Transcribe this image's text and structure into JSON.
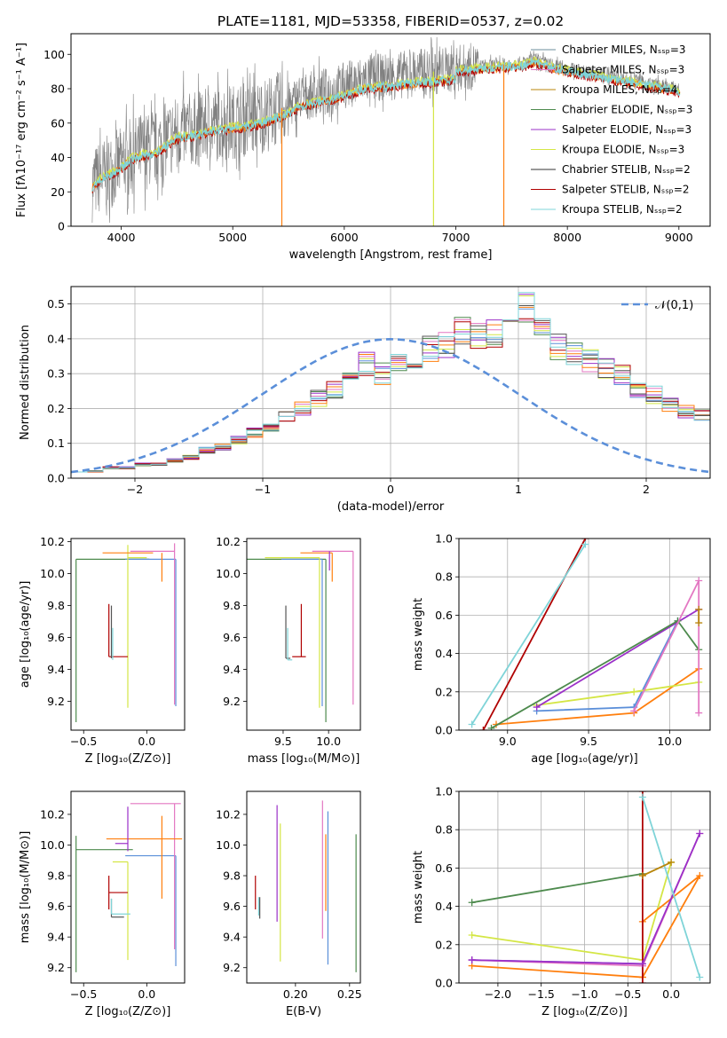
{
  "chart_data": [
    {
      "id": "spectrum",
      "type": "line",
      "title": "PLATE=1181, MJD=53358, FIBERID=0537, z=0.02",
      "xlabel": "wavelength [Angstrom, rest frame]",
      "ylabel": "Flux [fλ10⁻¹⁷ erg cm⁻² s⁻¹ A⁻¹]",
      "xlim": [
        3550,
        9280
      ],
      "ylim": [
        0,
        112
      ],
      "xticks": [
        4000,
        5000,
        6000,
        7000,
        8000,
        9000
      ],
      "yticks": [
        0,
        20,
        40,
        60,
        80,
        100
      ],
      "grid": false,
      "legend_position": "top-right",
      "legend": [
        {
          "label": "Chabrier MILES, Nₛₛₚ=3",
          "color": "#6b8e9b"
        },
        {
          "label": "Salpeter MILES, Nₛₛₚ=3",
          "color": "#e377c2"
        },
        {
          "label": "Kroupa MILES, Nₛₛₚ=4",
          "color": "#b8860b"
        },
        {
          "label": "Chabrier ELODIE, Nₛₛₚ=3",
          "color": "#4d8a4d"
        },
        {
          "label": "Salpeter ELODIE, Nₛₛₚ=3",
          "color": "#9b30c8"
        },
        {
          "label": "Kroupa ELODIE, Nₛₛₚ=3",
          "color": "#d4e645"
        },
        {
          "label": "Chabrier STELIB, Nₛₛₚ=2",
          "color": "#333333"
        },
        {
          "label": "Salpeter STELIB, Nₛₛₚ=2",
          "color": "#b00000"
        },
        {
          "label": "Kroupa STELIB, Nₛₛₚ=2",
          "color": "#7fd4d8"
        }
      ],
      "data_color": "#808080",
      "model_trend": {
        "x": [
          3740,
          3800,
          3900,
          4000,
          4100,
          4200,
          4300,
          4400,
          4500,
          4600,
          4700,
          4800,
          4900,
          5000,
          5100,
          5200,
          5300,
          5400,
          5500,
          5600,
          5700,
          5800,
          5900,
          6000,
          6200,
          6400,
          6600,
          6800,
          7000,
          7200,
          7400,
          7600,
          7700,
          7800,
          7900
        ],
        "y": [
          24,
          28,
          32,
          36,
          42,
          44,
          45,
          50,
          55,
          56,
          57,
          59,
          60,
          61,
          62,
          63,
          65,
          68,
          70,
          75,
          76,
          78,
          79,
          82,
          86,
          87,
          89,
          90,
          92,
          93,
          94,
          95,
          97,
          95,
          93
        ]
      }
    },
    {
      "id": "residuals",
      "type": "histogram",
      "xlabel": "(data-model)/error",
      "ylabel": "Normed distribution",
      "xlim": [
        -2.5,
        2.5
      ],
      "ylim": [
        0,
        0.55
      ],
      "xticks": [
        -2,
        -1,
        0,
        1,
        2
      ],
      "yticks": [
        0.0,
        0.1,
        0.2,
        0.3,
        0.4,
        0.5
      ],
      "grid": true,
      "legend_position": "top-right",
      "legend": [
        {
          "label": "𝒩(0,1)",
          "color": "#5b8fd9",
          "style": "dashed"
        }
      ],
      "reference_curve": "normal(0,1)",
      "bin_width": 0.125,
      "bin_start": -2.5,
      "base_hist": [
        0.02,
        0.02,
        0.03,
        0.03,
        0.04,
        0.04,
        0.05,
        0.06,
        0.08,
        0.09,
        0.11,
        0.13,
        0.15,
        0.18,
        0.2,
        0.23,
        0.25,
        0.28,
        0.33,
        0.3,
        0.33,
        0.35,
        0.37,
        0.38,
        0.42,
        0.4,
        0.42,
        0.44,
        0.49,
        0.45,
        0.38,
        0.36,
        0.34,
        0.31,
        0.3,
        0.26,
        0.24,
        0.21,
        0.19,
        0.18,
        0.16,
        0.14,
        0.12,
        0.1,
        0.08,
        0.07,
        0.06,
        0.04,
        0.03,
        0.03,
        0.02
      ]
    },
    {
      "id": "age_vs_Z",
      "type": "errorbar",
      "xlabel": "Z [log₁₀(Z/Z⊙)]",
      "ylabel": "age  [log₁₀(age/yr)]",
      "xlim": [
        -0.6,
        0.3
      ],
      "ylim": [
        9.02,
        10.22
      ],
      "xticks": [
        -0.5,
        0.0
      ],
      "yticks": [
        9.2,
        9.4,
        9.6,
        9.8,
        10.0,
        10.2
      ],
      "grid": false,
      "points": [
        {
          "x": -0.56,
          "y": 10.09,
          "xerr": [
            0.0,
            0.58
          ],
          "yerr": [
            1.02,
            0.0
          ],
          "color": "#4d8a4d"
        },
        {
          "x": 0.23,
          "y": 10.09,
          "xerr": [
            0.4,
            0.0
          ],
          "yerr": [
            0.92,
            0.0
          ],
          "color": "#5b8fd9"
        },
        {
          "x": -0.15,
          "y": 10.1,
          "xerr": [
            0.0,
            0.15
          ],
          "yerr": [
            0.94,
            0.08
          ],
          "color": "#d4e645"
        },
        {
          "x": 0.22,
          "y": 10.14,
          "xerr": [
            0.35,
            0.0
          ],
          "yerr": [
            0.96,
            0.05
          ],
          "color": "#e377c2"
        },
        {
          "x": -0.1,
          "y": 10.13,
          "xerr": [
            0.25,
            0.15
          ],
          "yerr": [
            0.0,
            0.0
          ],
          "color": "#ff7f0e"
        },
        {
          "x": 0.12,
          "y": 10.13,
          "xerr": [
            0.0,
            0.0
          ],
          "yerr": [
            0.18,
            0.0
          ],
          "color": "#ff7f0e"
        },
        {
          "x": -0.3,
          "y": 9.48,
          "xerr": [
            0.0,
            0.15
          ],
          "yerr": [
            0.0,
            0.33
          ],
          "color": "#b00000"
        },
        {
          "x": -0.28,
          "y": 9.47,
          "xerr": [
            0.0,
            0.0
          ],
          "yerr": [
            0.0,
            0.33
          ],
          "color": "#555555"
        },
        {
          "x": -0.27,
          "y": 9.46,
          "xerr": [
            0.0,
            0.0
          ],
          "yerr": [
            0.0,
            0.2
          ],
          "color": "#7fd4d8"
        }
      ]
    },
    {
      "id": "age_vs_mass",
      "type": "errorbar",
      "xlabel": "mass [log₁₀(M/M⊙)]",
      "ylabel": "",
      "xlim": [
        9.1,
        10.35
      ],
      "ylim": [
        9.02,
        10.22
      ],
      "xticks": [
        9.5,
        10.0
      ],
      "yticks": [
        9.2,
        9.4,
        9.6,
        9.8,
        10.0,
        10.2
      ],
      "grid": false,
      "points": [
        {
          "x": 9.97,
          "y": 10.09,
          "xerr": [
            0.95,
            0.0
          ],
          "yerr": [
            1.02,
            0.0
          ],
          "color": "#4d8a4d"
        },
        {
          "x": 9.93,
          "y": 10.09,
          "xerr": [
            0.45,
            0.0
          ],
          "yerr": [
            0.92,
            0.0
          ],
          "color": "#5b8fd9"
        },
        {
          "x": 9.9,
          "y": 10.1,
          "xerr": [
            0.6,
            0.0
          ],
          "yerr": [
            0.94,
            0.0
          ],
          "color": "#d4e645"
        },
        {
          "x": 10.27,
          "y": 10.14,
          "xerr": [
            0.45,
            0.0
          ],
          "yerr": [
            0.96,
            0.0
          ],
          "color": "#e377c2"
        },
        {
          "x": 10.04,
          "y": 10.13,
          "xerr": [
            0.35,
            0.0
          ],
          "yerr": [
            0.18,
            0.0
          ],
          "color": "#ff7f0e"
        },
        {
          "x": 10.01,
          "y": 10.14,
          "xerr": [
            0.0,
            0.0
          ],
          "yerr": [
            0.12,
            0.0
          ],
          "color": "#9b30c8"
        },
        {
          "x": 9.7,
          "y": 9.48,
          "xerr": [
            0.1,
            0.05
          ],
          "yerr": [
            0.0,
            0.33
          ],
          "color": "#b00000"
        },
        {
          "x": 9.53,
          "y": 9.47,
          "xerr": [
            0.0,
            0.05
          ],
          "yerr": [
            0.0,
            0.33
          ],
          "color": "#555555"
        },
        {
          "x": 9.55,
          "y": 9.46,
          "xerr": [
            0.0,
            0.05
          ],
          "yerr": [
            0.0,
            0.2
          ],
          "color": "#7fd4d8"
        }
      ]
    },
    {
      "id": "weight_vs_age",
      "type": "line",
      "xlabel": "age  [log₁₀(age/yr)]",
      "ylabel": "mass weight",
      "xlim": [
        8.7,
        10.25
      ],
      "ylim": [
        0,
        1
      ],
      "xticks": [
        9.0,
        9.5,
        10.0
      ],
      "yticks": [
        0.0,
        0.2,
        0.4,
        0.6,
        0.8,
        1.0
      ],
      "grid": true,
      "series": [
        {
          "color": "#ff7f0e",
          "x": [
            8.93,
            9.78,
            10.18
          ],
          "y": [
            0.03,
            0.09,
            0.32
          ]
        },
        {
          "color": "#5b8fd9",
          "x": [
            9.18,
            9.78,
            10.05
          ],
          "y": [
            0.1,
            0.12,
            0.57
          ]
        },
        {
          "color": "#d4e645",
          "x": [
            9.18,
            9.78,
            10.18
          ],
          "y": [
            0.13,
            0.2,
            0.25
          ]
        },
        {
          "color": "#9b30c8",
          "x": [
            9.18,
            10.18
          ],
          "y": [
            0.12,
            0.63
          ]
        },
        {
          "color": "#4d8a4d",
          "x": [
            8.9,
            10.05,
            10.18
          ],
          "y": [
            0.01,
            0.57,
            0.42
          ]
        },
        {
          "color": "#b00000",
          "x": [
            8.85,
            9.48
          ],
          "y": [
            0.0,
            1.0
          ]
        },
        {
          "color": "#e377c2",
          "x": [
            9.78,
            10.18,
            10.18
          ],
          "y": [
            0.1,
            0.78,
            0.09
          ]
        },
        {
          "color": "#7fd4d8",
          "x": [
            8.78,
            9.48
          ],
          "y": [
            0.03,
            0.97
          ]
        },
        {
          "color": "#b8860b",
          "x": [
            10.18,
            10.18
          ],
          "y": [
            0.63,
            0.56
          ]
        }
      ]
    },
    {
      "id": "mass_vs_Z",
      "type": "errorbar",
      "xlabel": "Z [log₁₀(Z/Z⊙)]",
      "ylabel": "mass [log₁₀(M/M⊙)]",
      "xlim": [
        -0.6,
        0.3
      ],
      "ylim": [
        9.1,
        10.35
      ],
      "xticks": [
        -0.5,
        0.0
      ],
      "yticks": [
        9.2,
        9.4,
        9.6,
        9.8,
        10.0,
        10.2
      ],
      "grid": false,
      "points": [
        {
          "x": -0.56,
          "y": 9.97,
          "xerr": [
            0.0,
            0.45
          ],
          "yerr": [
            0.8,
            0.09
          ],
          "color": "#4d8a4d"
        },
        {
          "x": 0.23,
          "y": 9.93,
          "xerr": [
            0.4,
            0.0
          ],
          "yerr": [
            0.72,
            0.0
          ],
          "color": "#5b8fd9"
        },
        {
          "x": -0.15,
          "y": 9.89,
          "xerr": [
            0.12,
            0.0
          ],
          "yerr": [
            0.64,
            0.0
          ],
          "color": "#d4e645"
        },
        {
          "x": 0.22,
          "y": 10.27,
          "xerr": [
            0.35,
            0.05
          ],
          "yerr": [
            0.95,
            0.0
          ],
          "color": "#e377c2"
        },
        {
          "x": -0.32,
          "y": 10.04,
          "xerr": [
            0.0,
            0.6
          ],
          "yerr": [
            0.0,
            0.0
          ],
          "color": "#ff7f0e"
        },
        {
          "x": 0.12,
          "y": 10.04,
          "xerr": [
            0.0,
            0.0
          ],
          "yerr": [
            0.39,
            0.15
          ],
          "color": "#ff7f0e"
        },
        {
          "x": -0.15,
          "y": 10.01,
          "xerr": [
            0.1,
            0.0
          ],
          "yerr": [
            0.05,
            0.24
          ],
          "color": "#9b30c8"
        },
        {
          "x": -0.3,
          "y": 9.69,
          "xerr": [
            0.0,
            0.15
          ],
          "yerr": [
            0.11,
            0.11
          ],
          "color": "#b00000"
        },
        {
          "x": -0.28,
          "y": 9.53,
          "xerr": [
            0.0,
            0.1
          ],
          "yerr": [
            0.0,
            0.12
          ],
          "color": "#555555"
        },
        {
          "x": -0.28,
          "y": 9.55,
          "xerr": [
            0.0,
            0.15
          ],
          "yerr": [
            0.0,
            0.1
          ],
          "color": "#7fd4d8"
        }
      ]
    },
    {
      "id": "mass_vs_ebv",
      "type": "errorbar",
      "xlabel": "E(B-V)",
      "ylabel": "",
      "xlim": [
        0.155,
        0.26
      ],
      "ylim": [
        9.1,
        10.35
      ],
      "xticks": [
        0.2,
        0.25
      ],
      "yticks": [
        9.2,
        9.4,
        9.6,
        9.8,
        10.0,
        10.2
      ],
      "grid": false,
      "points": [
        {
          "x": 0.256,
          "y": 9.62,
          "yerr": [
            0.45,
            0.45
          ],
          "color": "#4d8a4d"
        },
        {
          "x": 0.23,
          "y": 9.72,
          "yerr": [
            0.5,
            0.5
          ],
          "color": "#5b8fd9"
        },
        {
          "x": 0.186,
          "y": 9.69,
          "yerr": [
            0.45,
            0.45
          ],
          "color": "#d4e645"
        },
        {
          "x": 0.225,
          "y": 9.84,
          "yerr": [
            0.45,
            0.45
          ],
          "color": "#e377c2"
        },
        {
          "x": 0.228,
          "y": 9.82,
          "yerr": [
            0.25,
            0.25
          ],
          "color": "#ff7f0e"
        },
        {
          "x": 0.183,
          "y": 9.88,
          "yerr": [
            0.38,
            0.38
          ],
          "color": "#9b30c8"
        },
        {
          "x": 0.163,
          "y": 9.69,
          "yerr": [
            0.11,
            0.11
          ],
          "color": "#b00000"
        },
        {
          "x": 0.167,
          "y": 9.59,
          "yerr": [
            0.07,
            0.07
          ],
          "color": "#555555"
        },
        {
          "x": 0.166,
          "y": 9.6,
          "yerr": [
            0.06,
            0.06
          ],
          "color": "#7fd4d8"
        }
      ]
    },
    {
      "id": "weight_vs_Z",
      "type": "line",
      "xlabel": "Z [log₁₀(Z/Z⊙)]",
      "ylabel": "mass weight",
      "xlim": [
        -2.45,
        0.45
      ],
      "ylim": [
        0,
        1
      ],
      "xticks": [
        -2.0,
        -1.5,
        -1.0,
        -0.5,
        0.0
      ],
      "yticks": [
        0.0,
        0.2,
        0.4,
        0.6,
        0.8,
        1.0
      ],
      "grid": true,
      "series": [
        {
          "color": "#4d8a4d",
          "x": [
            -2.3,
            -0.33
          ],
          "y": [
            0.42,
            0.57
          ]
        },
        {
          "color": "#d4e645",
          "x": [
            -2.3,
            -0.33,
            0.0
          ],
          "y": [
            0.25,
            0.12,
            0.63
          ]
        },
        {
          "color": "#5b8fd9",
          "x": [
            -2.3,
            -0.33
          ],
          "y": [
            0.12,
            0.1
          ]
        },
        {
          "color": "#e377c2",
          "x": [
            -2.3,
            -0.33,
            0.33,
            -0.33
          ],
          "y": [
            0.12,
            0.09,
            0.78,
            0.09
          ]
        },
        {
          "color": "#ff7f0e",
          "x": [
            -2.3,
            -0.33,
            -0.33,
            0.33,
            -0.33
          ],
          "y": [
            0.09,
            0.03,
            0.32,
            0.56,
            0.03
          ]
        },
        {
          "color": "#b00000",
          "x": [
            -0.33,
            -0.33
          ],
          "y": [
            0.0,
            1.0
          ]
        },
        {
          "color": "#9b30c8",
          "x": [
            -2.3,
            -0.33,
            0.33
          ],
          "y": [
            0.12,
            0.1,
            0.78
          ]
        },
        {
          "color": "#7fd4d8",
          "x": [
            -0.33,
            0.33
          ],
          "y": [
            0.97,
            0.03
          ]
        },
        {
          "color": "#b8860b",
          "x": [
            0.0,
            -0.33
          ],
          "y": [
            0.63,
            0.56
          ]
        }
      ]
    }
  ]
}
